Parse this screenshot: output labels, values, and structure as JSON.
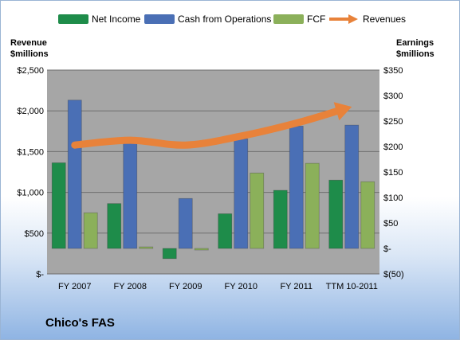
{
  "chart_data": {
    "type": "bar",
    "title": "Chico's FAS",
    "legend_position": "top",
    "grid": true,
    "categories": [
      "FY 2007",
      "FY 2008",
      "FY 2009",
      "FY 2010",
      "FY 2011",
      "TTM 10-2011"
    ],
    "y_left": {
      "label_line1": "Revenue",
      "label_line2": "$millions",
      "range": [
        0,
        2500
      ],
      "ticks": [
        0,
        500,
        1000,
        1500,
        2000,
        2500
      ],
      "tick_labels": [
        "$-",
        "$500",
        "$1,000",
        "$1,500",
        "$2,000",
        "$2,500"
      ]
    },
    "y_right": {
      "label_line1": "Earnings",
      "label_line2": "$millions",
      "range": [
        -50,
        350
      ],
      "ticks": [
        -50,
        0,
        50,
        100,
        150,
        200,
        250,
        300,
        350
      ],
      "tick_labels": [
        "$(50)",
        "$-",
        "$50",
        "$100",
        "$150",
        "$200",
        "$250",
        "$300",
        "$350"
      ]
    },
    "series": [
      {
        "name": "Net Income",
        "axis": "right",
        "color": "#1e8c4a",
        "values": [
          168,
          88,
          -20,
          68,
          114,
          134
        ]
      },
      {
        "name": "Cash from Operations",
        "axis": "right",
        "color": "#4a6fb5",
        "values": [
          291,
          210,
          98,
          215,
          240,
          242
        ]
      },
      {
        "name": "FCF",
        "axis": "right",
        "color": "#8bb05a",
        "values": [
          70,
          3,
          -3,
          148,
          167,
          131
        ]
      },
      {
        "name": "Revenues",
        "axis": "left",
        "type": "arrow",
        "color": "#e8823a",
        "values": [
          1580,
          1640,
          1580,
          1690,
          1850,
          2050
        ]
      }
    ]
  }
}
